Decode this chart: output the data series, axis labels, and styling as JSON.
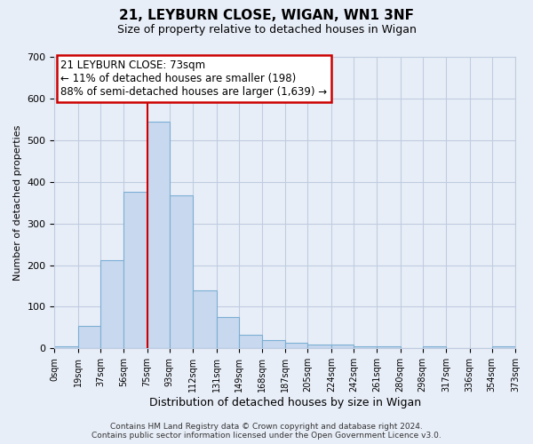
{
  "title": "21, LEYBURN CLOSE, WIGAN, WN1 3NF",
  "subtitle": "Size of property relative to detached houses in Wigan",
  "xlabel": "Distribution of detached houses by size in Wigan",
  "ylabel": "Number of detached properties",
  "bar_heights": [
    5,
    55,
    212,
    375,
    545,
    368,
    140,
    75,
    33,
    20,
    13,
    10,
    9,
    5,
    5,
    0,
    5,
    0,
    0,
    5
  ],
  "bin_edges": [
    0,
    19,
    37,
    56,
    75,
    93,
    112,
    131,
    149,
    168,
    187,
    205,
    224,
    242,
    261,
    280,
    298,
    317,
    336,
    354,
    373
  ],
  "x_tick_labels": [
    "0sqm",
    "19sqm",
    "37sqm",
    "56sqm",
    "75sqm",
    "93sqm",
    "112sqm",
    "131sqm",
    "149sqm",
    "168sqm",
    "187sqm",
    "205sqm",
    "224sqm",
    "242sqm",
    "261sqm",
    "280sqm",
    "298sqm",
    "317sqm",
    "336sqm",
    "354sqm",
    "373sqm"
  ],
  "bar_color": "#c8d8ee",
  "bar_edge_color": "#7bafd4",
  "ylim": [
    0,
    700
  ],
  "yticks": [
    0,
    100,
    200,
    300,
    400,
    500,
    600,
    700
  ],
  "vline_x": 75,
  "vline_color": "#cc0000",
  "annotation_text": "21 LEYBURN CLOSE: 73sqm\n← 11% of detached houses are smaller (198)\n88% of semi-detached houses are larger (1,639) →",
  "annotation_box_color": "#ffffff",
  "annotation_box_edge_color": "#cc0000",
  "footer_text": "Contains HM Land Registry data © Crown copyright and database right 2024.\nContains public sector information licensed under the Open Government Licence v3.0.",
  "background_color": "#e8eef8",
  "plot_background_color": "#e8eef8",
  "grid_color": "#c0cce0",
  "figsize": [
    6.0,
    5.0
  ],
  "dpi": 100
}
